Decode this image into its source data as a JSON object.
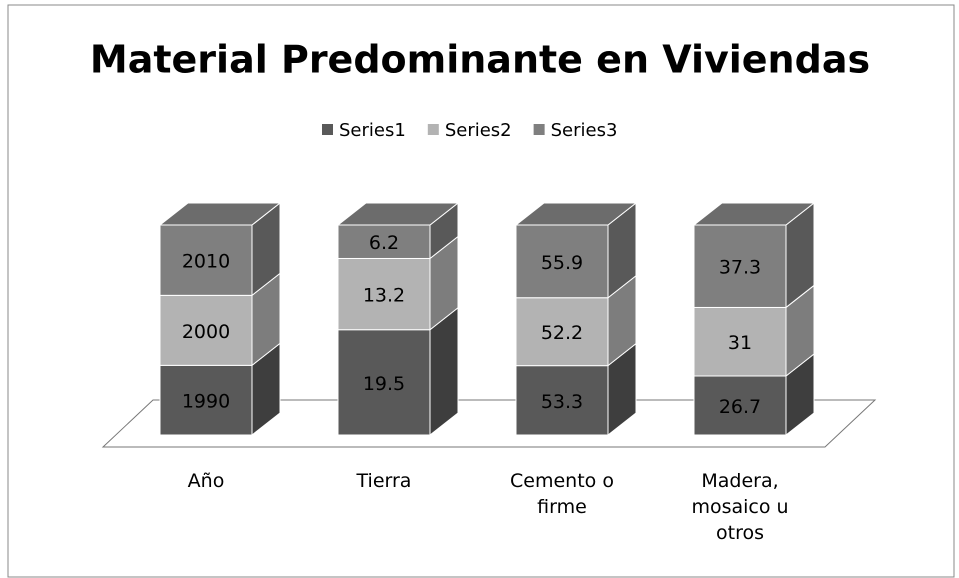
{
  "chart_data": {
    "type": "bar",
    "stacked": "percent",
    "three_d": true,
    "title": "Material Predominante en Viviendas",
    "categories": [
      "Año",
      "Tierra",
      "Cemento o firme",
      "Madera, mosaico u otros"
    ],
    "series": [
      {
        "name": "Series1",
        "color": "#595959",
        "values": [
          1990,
          19.5,
          53.3,
          26.7
        ]
      },
      {
        "name": "Series2",
        "color": "#b3b3b3",
        "values": [
          2000,
          13.2,
          52.2,
          31
        ]
      },
      {
        "name": "Series3",
        "color": "#7f7f7f",
        "values": [
          2010,
          6.2,
          55.9,
          37.3
        ]
      }
    ],
    "legend": "top",
    "data_labels": true
  }
}
